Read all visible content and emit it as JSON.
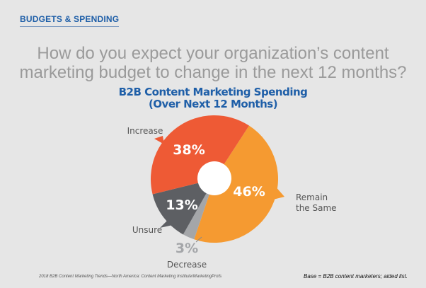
{
  "section_label": "BUDGETS & SPENDING",
  "question": "How do you expect your organization’s content marketing budget to change in the next 12 months?",
  "chart_data": {
    "type": "pie",
    "title": "B2B Content Marketing Spending",
    "subtitle": "(Over Next 12 Months)",
    "donut": true,
    "slices": [
      {
        "label": "Remain the Same",
        "value": 46,
        "display": "46%",
        "color": "#f59a31"
      },
      {
        "label": "Decrease",
        "value": 3,
        "display": "3%",
        "color": "#a4a6a9"
      },
      {
        "label": "Unsure",
        "value": 13,
        "display": "13%",
        "color": "#5d5f63"
      },
      {
        "label": "Increase",
        "value": 38,
        "display": "38%",
        "color": "#ee5a35"
      }
    ]
  },
  "footer": {
    "source": "2018 B2B Content Marketing Trends—North America: Content Marketing Institute/MarketingProfs",
    "base": "Base = B2B content marketers; aided list."
  }
}
